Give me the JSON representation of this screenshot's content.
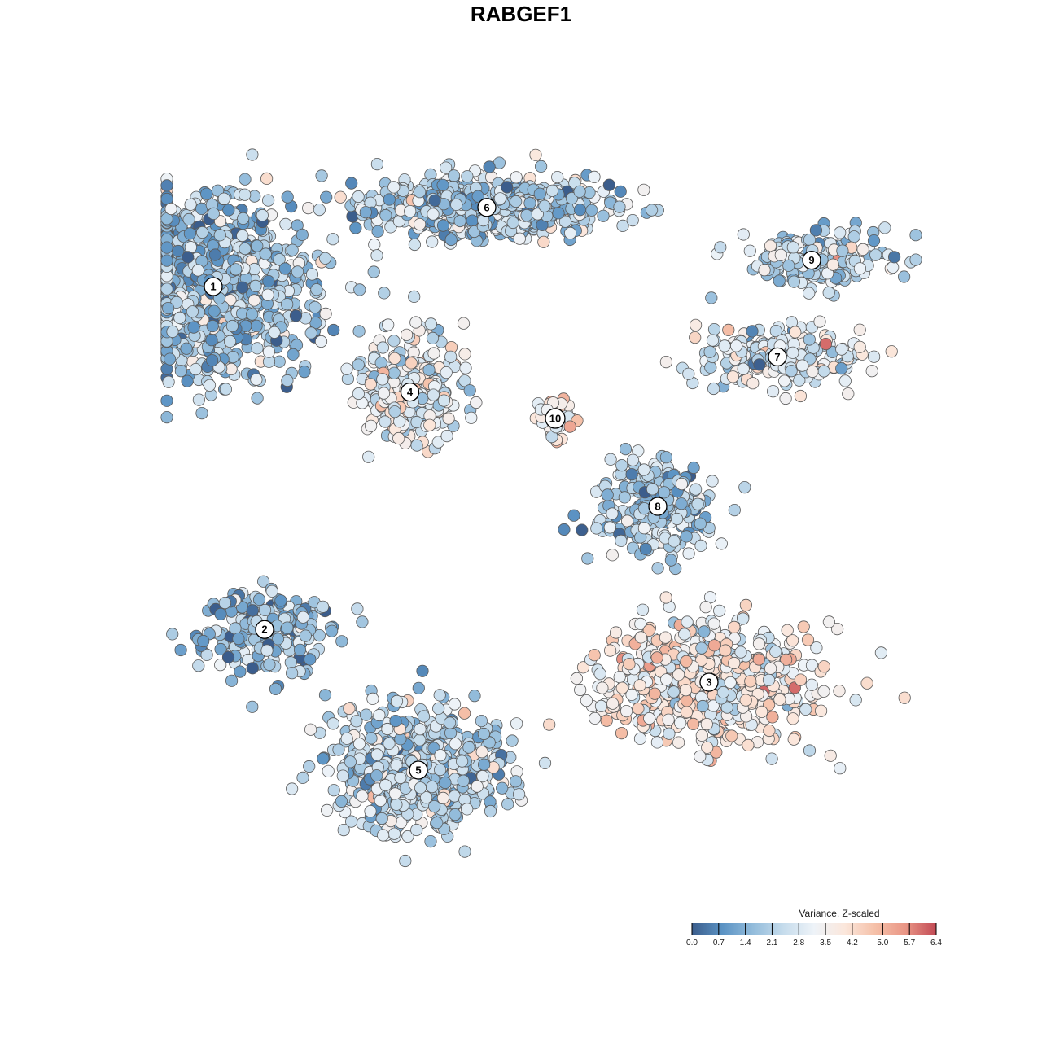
{
  "chart_data": {
    "type": "scatter",
    "title": "RABGEF1",
    "grid": false,
    "marker_color_field": "variance_z_scaled",
    "clusters": [
      {
        "label": "1",
        "x": -36,
        "y": 25,
        "spread": [
          11,
          9
        ],
        "n": 900,
        "mean_value": 1.7
      },
      {
        "label": "2",
        "x": -30,
        "y": -14,
        "spread": [
          7,
          4
        ],
        "n": 260,
        "mean_value": 1.6
      },
      {
        "label": "3",
        "x": 22,
        "y": -20,
        "spread": [
          11,
          6
        ],
        "n": 650,
        "mean_value": 3.6
      },
      {
        "label": "4",
        "x": -13,
        "y": 13,
        "spread": [
          5,
          5
        ],
        "n": 320,
        "mean_value": 3.0
      },
      {
        "label": "5",
        "x": -12,
        "y": -30,
        "spread": [
          9,
          6
        ],
        "n": 650,
        "mean_value": 2.3
      },
      {
        "label": "6",
        "x": -4,
        "y": 34,
        "spread": [
          13,
          3
        ],
        "n": 700,
        "mean_value": 2.1
      },
      {
        "label": "7",
        "x": 30,
        "y": 17,
        "spread": [
          9,
          3
        ],
        "n": 230,
        "mean_value": 2.8
      },
      {
        "label": "8",
        "x": 16,
        "y": 0,
        "spread": [
          6,
          5
        ],
        "n": 260,
        "mean_value": 2.0
      },
      {
        "label": "9",
        "x": 34,
        "y": 28,
        "spread": [
          8,
          3
        ],
        "n": 170,
        "mean_value": 2.2
      },
      {
        "label": "10",
        "x": 4,
        "y": 10,
        "spread": [
          2,
          2
        ],
        "n": 40,
        "mean_value": 3.9
      }
    ],
    "colorbar": {
      "title": "Variance, Z-scaled",
      "min": 0.0,
      "max": 6.4,
      "ticks": [
        "0.0",
        "0.7",
        "1.4",
        "2.1",
        "2.8",
        "3.5",
        "4.2",
        "5.0",
        "5.7",
        "6.4"
      ],
      "tick_values": [
        0.0,
        0.7,
        1.4,
        2.1,
        2.8,
        3.5,
        4.2,
        5.0,
        5.7,
        6.4
      ],
      "colors": [
        "#3b5d8c",
        "#5b93c4",
        "#93bcdb",
        "#c6dcec",
        "#eef3f8",
        "#fbe7dc",
        "#f5c0a8",
        "#e99585",
        "#c24a55"
      ],
      "placement": "bottom-right"
    },
    "background": "#ffffff"
  }
}
